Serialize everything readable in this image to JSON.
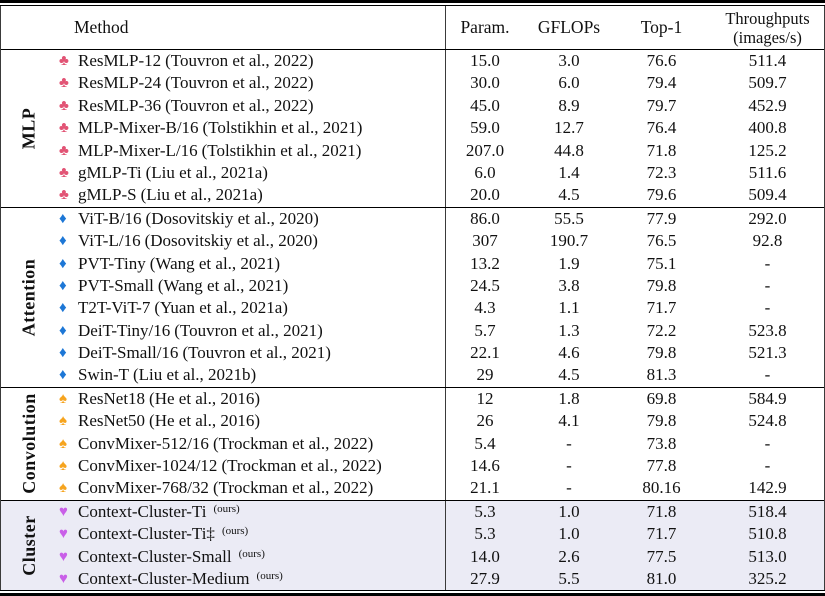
{
  "header": {
    "method": "Method",
    "param": "Param.",
    "gflops": "GFLOPs",
    "top1": "Top-1",
    "throughput_line1": "Throughputs",
    "throughput_line2": "(images/s)"
  },
  "suit_glyphs": {
    "club": "♣",
    "diamond": "♦",
    "spade": "♠",
    "heart": "♥"
  },
  "colors": {
    "club": "#e25475",
    "diamond": "#1d77d6",
    "spade": "#f6a41e",
    "heart": "#c95fe8",
    "cluster_row_bg": "#ebebf5",
    "rule": "#000000"
  },
  "groups": [
    {
      "label": "MLP",
      "suit": "club",
      "highlight": false,
      "rows": [
        {
          "method": "ResMLP-12",
          "cite": "(Touvron et al., 2022)",
          "param": "15.0",
          "gflops": "3.0",
          "top1": "76.6",
          "throughput": "511.4"
        },
        {
          "method": "ResMLP-24",
          "cite": "(Touvron et al., 2022)",
          "param": "30.0",
          "gflops": "6.0",
          "top1": "79.4",
          "throughput": "509.7"
        },
        {
          "method": "ResMLP-36",
          "cite": "(Touvron et al., 2022)",
          "param": "45.0",
          "gflops": "8.9",
          "top1": "79.7",
          "throughput": "452.9"
        },
        {
          "method": "MLP-Mixer-B/16",
          "cite": "(Tolstikhin et al., 2021)",
          "param": "59.0",
          "gflops": "12.7",
          "top1": "76.4",
          "throughput": "400.8"
        },
        {
          "method": "MLP-Mixer-L/16",
          "cite": "(Tolstikhin et al., 2021)",
          "param": "207.0",
          "gflops": "44.8",
          "top1": "71.8",
          "throughput": "125.2"
        },
        {
          "method": "gMLP-Ti",
          "cite": "(Liu et al., 2021a)",
          "param": "6.0",
          "gflops": "1.4",
          "top1": "72.3",
          "throughput": "511.6"
        },
        {
          "method": "gMLP-S",
          "cite": "(Liu et al., 2021a)",
          "param": "20.0",
          "gflops": "4.5",
          "top1": "79.6",
          "throughput": "509.4"
        }
      ]
    },
    {
      "label": "Attention",
      "suit": "diamond",
      "highlight": false,
      "rows": [
        {
          "method": "ViT-B/16",
          "cite": "(Dosovitskiy et al., 2020)",
          "param": "86.0",
          "gflops": "55.5",
          "top1": "77.9",
          "throughput": "292.0"
        },
        {
          "method": "ViT-L/16",
          "cite": "(Dosovitskiy et al., 2020)",
          "param": "307",
          "gflops": "190.7",
          "top1": "76.5",
          "throughput": "92.8"
        },
        {
          "method": "PVT-Tiny",
          "cite": "(Wang et al., 2021)",
          "param": "13.2",
          "gflops": "1.9",
          "top1": "75.1",
          "throughput": "-"
        },
        {
          "method": "PVT-Small",
          "cite": "(Wang et al., 2021)",
          "param": "24.5",
          "gflops": "3.8",
          "top1": "79.8",
          "throughput": "-"
        },
        {
          "method": "T2T-ViT-7",
          "cite": "(Yuan et al., 2021a)",
          "param": "4.3",
          "gflops": "1.1",
          "top1": "71.7",
          "throughput": "-"
        },
        {
          "method": "DeiT-Tiny/16",
          "cite": "(Touvron et al., 2021)",
          "param": "5.7",
          "gflops": "1.3",
          "top1": "72.2",
          "throughput": "523.8"
        },
        {
          "method": "DeiT-Small/16",
          "cite": "(Touvron et al., 2021)",
          "param": "22.1",
          "gflops": "4.6",
          "top1": "79.8",
          "throughput": "521.3"
        },
        {
          "method": "Swin-T",
          "cite": "(Liu et al., 2021b)",
          "param": "29",
          "gflops": "4.5",
          "top1": "81.3",
          "throughput": "-"
        }
      ]
    },
    {
      "label": "Convolution",
      "suit": "spade",
      "highlight": false,
      "rows": [
        {
          "method": "ResNet18",
          "cite": "(He et al., 2016)",
          "param": "12",
          "gflops": "1.8",
          "top1": "69.8",
          "throughput": "584.9"
        },
        {
          "method": "ResNet50",
          "cite": "(He et al., 2016)",
          "param": "26",
          "gflops": "4.1",
          "top1": "79.8",
          "throughput": "524.8"
        },
        {
          "method": "ConvMixer-512/16",
          "cite": "(Trockman et al., 2022)",
          "param": "5.4",
          "gflops": "-",
          "top1": "73.8",
          "throughput": "-"
        },
        {
          "method": "ConvMixer-1024/12",
          "cite": "(Trockman et al., 2022)",
          "param": "14.6",
          "gflops": "-",
          "top1": "77.8",
          "throughput": "-"
        },
        {
          "method": "ConvMixer-768/32",
          "cite": "(Trockman et al., 2022)",
          "param": "21.1",
          "gflops": "-",
          "top1": "80.16",
          "throughput": "142.9"
        }
      ]
    },
    {
      "label": "Cluster",
      "suit": "heart",
      "highlight": true,
      "rows": [
        {
          "method": "Context-Cluster-Ti",
          "cite": "",
          "ours": "(ours)",
          "param": "5.3",
          "gflops": "1.0",
          "top1": "71.8",
          "throughput": "518.4"
        },
        {
          "method": "Context-Cluster-Ti‡",
          "cite": "",
          "ours": "(ours)",
          "param": "5.3",
          "gflops": "1.0",
          "top1": "71.7",
          "throughput": "510.8"
        },
        {
          "method": "Context-Cluster-Small",
          "cite": "",
          "ours": "(ours)",
          "param": "14.0",
          "gflops": "2.6",
          "top1": "77.5",
          "throughput": "513.0"
        },
        {
          "method": "Context-Cluster-Medium",
          "cite": "",
          "ours": "(ours)",
          "param": "27.9",
          "gflops": "5.5",
          "top1": "81.0",
          "throughput": "325.2"
        }
      ]
    }
  ]
}
